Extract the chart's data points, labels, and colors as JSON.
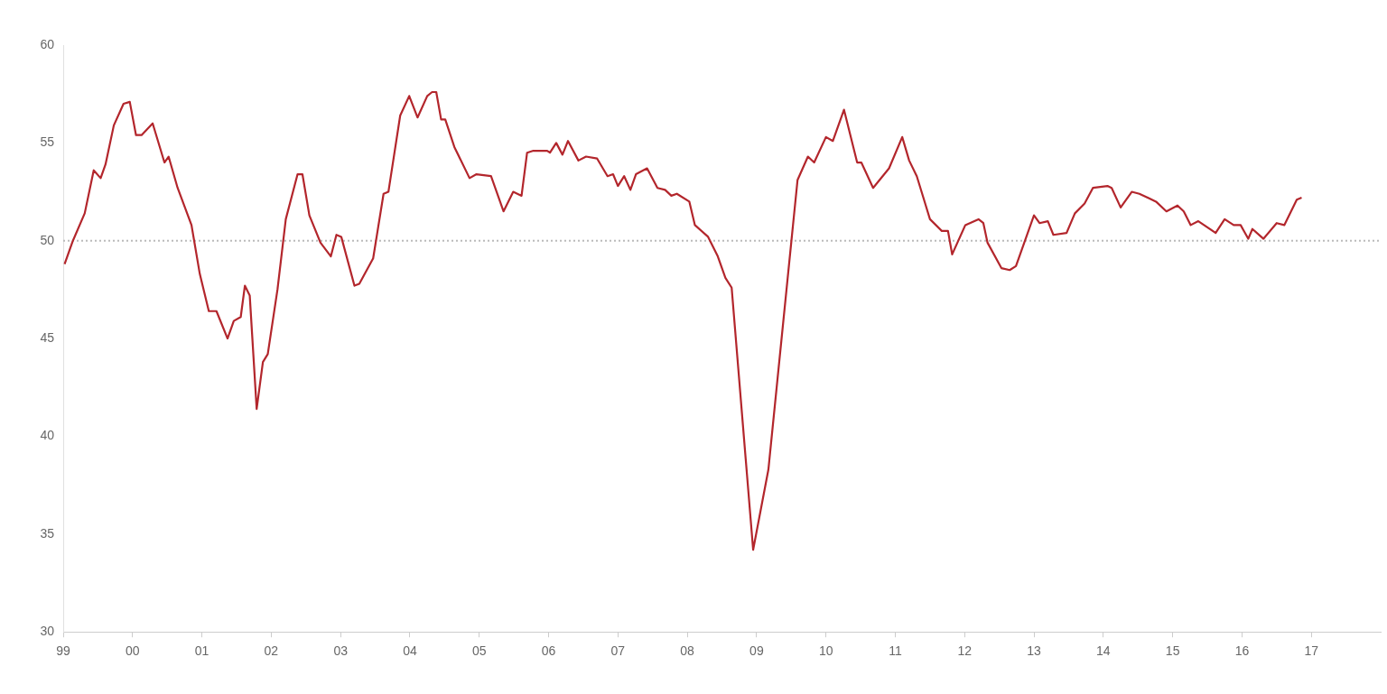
{
  "chart_data": {
    "type": "line",
    "color": "#b3262c",
    "x": [
      1999.02,
      1999.14,
      1999.31,
      1999.44,
      1999.54,
      1999.61,
      1999.73,
      1999.87,
      1999.96,
      2000.05,
      2000.13,
      2000.29,
      2000.46,
      2000.52,
      2000.65,
      2000.85,
      2000.97,
      2001.1,
      2001.21,
      2001.37,
      2001.46,
      2001.56,
      2001.62,
      2001.69,
      2001.79,
      2001.88,
      2001.95,
      2002.09,
      2002.21,
      2002.38,
      2002.45,
      2002.55,
      2002.71,
      2002.86,
      2002.94,
      2003.01,
      2003.2,
      2003.27,
      2003.47,
      2003.62,
      2003.69,
      2003.86,
      2003.99,
      2004.11,
      2004.25,
      2004.32,
      2004.38,
      2004.45,
      2004.51,
      2004.64,
      2004.86,
      2004.96,
      2005.17,
      2005.35,
      2005.49,
      2005.61,
      2005.69,
      2005.78,
      2005.98,
      2006.02,
      2006.11,
      2006.2,
      2006.28,
      2006.43,
      2006.54,
      2006.7,
      2006.85,
      2006.93,
      2007.0,
      2007.09,
      2007.18,
      2007.26,
      2007.42,
      2007.57,
      2007.68,
      2007.77,
      2007.85,
      2008.03,
      2008.11,
      2008.3,
      2008.44,
      2008.55,
      2008.64,
      2008.95,
      2009.17,
      2009.59,
      2009.74,
      2009.83,
      2010.0,
      2010.1,
      2010.26,
      2010.45,
      2010.51,
      2010.68,
      2010.91,
      2011.1,
      2011.2,
      2011.31,
      2011.5,
      2011.67,
      2011.76,
      2011.82,
      2012.01,
      2012.2,
      2012.27,
      2012.33,
      2012.53,
      2012.65,
      2012.74,
      2013.0,
      2013.08,
      2013.2,
      2013.28,
      2013.47,
      2013.59,
      2013.73,
      2013.85,
      2014.06,
      2014.12,
      2014.25,
      2014.41,
      2014.52,
      2014.76,
      2014.91,
      2015.07,
      2015.16,
      2015.26,
      2015.37,
      2015.62,
      2015.75,
      2015.88,
      2015.98,
      2016.09,
      2016.15,
      2016.31,
      2016.5,
      2016.61,
      2016.79,
      2016.86
    ],
    "values": [
      48.8,
      50.0,
      51.4,
      53.6,
      53.2,
      53.9,
      55.9,
      57.0,
      57.1,
      55.4,
      55.4,
      56.0,
      54.0,
      54.3,
      52.7,
      50.8,
      48.3,
      46.4,
      46.4,
      45.0,
      45.9,
      46.1,
      47.7,
      47.2,
      41.4,
      43.8,
      44.2,
      47.5,
      51.1,
      53.4,
      53.4,
      51.3,
      49.9,
      49.2,
      50.3,
      50.2,
      47.7,
      47.8,
      49.1,
      52.4,
      52.5,
      56.4,
      57.4,
      56.3,
      57.4,
      57.6,
      57.6,
      56.2,
      56.2,
      54.8,
      53.2,
      53.4,
      53.3,
      51.5,
      52.5,
      52.3,
      54.5,
      54.6,
      54.6,
      54.5,
      55.0,
      54.4,
      55.1,
      54.1,
      54.3,
      54.2,
      53.3,
      53.4,
      52.8,
      53.3,
      52.6,
      53.4,
      53.7,
      52.7,
      52.6,
      52.3,
      52.4,
      52.0,
      50.8,
      50.2,
      49.2,
      48.1,
      47.6,
      34.2,
      38.3,
      53.1,
      54.3,
      54.0,
      55.3,
      55.1,
      56.7,
      54.0,
      54.0,
      52.7,
      53.7,
      55.3,
      54.1,
      53.3,
      51.1,
      50.5,
      50.5,
      49.3,
      50.8,
      51.1,
      50.9,
      49.9,
      48.6,
      48.5,
      48.7,
      51.3,
      50.9,
      51.0,
      50.3,
      50.4,
      51.4,
      51.9,
      52.7,
      52.8,
      52.7,
      51.7,
      52.5,
      52.4,
      52.0,
      51.5,
      51.8,
      51.5,
      50.8,
      51.0,
      50.4,
      51.1,
      50.8,
      50.8,
      50.1,
      50.6,
      50.1,
      50.9,
      50.8,
      52.1,
      52.2
    ],
    "xlim": [
      1999,
      2018
    ],
    "xticks": [
      {
        "value": 1999,
        "label": "99"
      },
      {
        "value": 2000,
        "label": "00"
      },
      {
        "value": 2001,
        "label": "01"
      },
      {
        "value": 2002,
        "label": "02"
      },
      {
        "value": 2003,
        "label": "03"
      },
      {
        "value": 2004,
        "label": "04"
      },
      {
        "value": 2005,
        "label": "05"
      },
      {
        "value": 2006,
        "label": "06"
      },
      {
        "value": 2007,
        "label": "07"
      },
      {
        "value": 2008,
        "label": "08"
      },
      {
        "value": 2009,
        "label": "09"
      },
      {
        "value": 2010,
        "label": "10"
      },
      {
        "value": 2011,
        "label": "11"
      },
      {
        "value": 2012,
        "label": "12"
      },
      {
        "value": 2013,
        "label": "13"
      },
      {
        "value": 2014,
        "label": "14"
      },
      {
        "value": 2015,
        "label": "15"
      },
      {
        "value": 2016,
        "label": "16"
      },
      {
        "value": 2017,
        "label": "17"
      }
    ],
    "ylim": [
      30,
      60
    ],
    "yticks": [
      30,
      35,
      40,
      45,
      50,
      55,
      60
    ],
    "ref_lines": [
      {
        "axis": "y",
        "value": 50,
        "color": "#bbbbbb",
        "line_style": "dotted"
      }
    ]
  }
}
